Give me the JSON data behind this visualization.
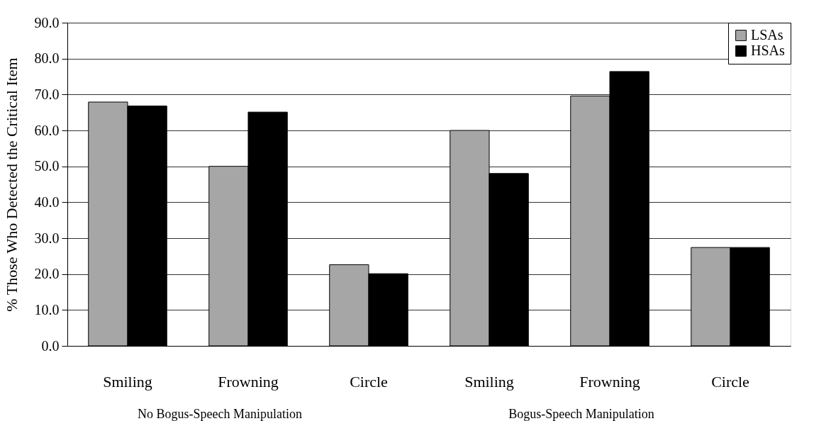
{
  "chart_data": {
    "type": "bar",
    "ylabel": "% Those Who Detected the Critical Item",
    "categories": [
      "Smiling",
      "Frowning",
      "Circle",
      "Smiling",
      "Frowning",
      "Circle"
    ],
    "series": [
      {
        "name": "LSAs",
        "color": "#a6a6a6",
        "values": [
          67.9,
          50.0,
          22.6,
          60.0,
          69.6,
          27.4
        ]
      },
      {
        "name": "HSAs",
        "color": "#000000",
        "values": [
          66.8,
          65.1,
          20.1,
          48.0,
          76.4,
          27.4
        ]
      }
    ],
    "annotations": [
      "No Bogus-Speech Manipulation",
      "Bogus-Speech Manipulation"
    ],
    "ylim": [
      0,
      90
    ],
    "yticks": [
      {
        "value": 0,
        "label": "0.0"
      },
      {
        "value": 10,
        "label": "10.0"
      },
      {
        "value": 20,
        "label": "20.0"
      },
      {
        "value": 30,
        "label": "30.0"
      },
      {
        "value": 40,
        "label": "40.0"
      },
      {
        "value": 50,
        "label": "50.0"
      },
      {
        "value": 60,
        "label": "60.0"
      },
      {
        "value": 70,
        "label": "70.0"
      },
      {
        "value": 80,
        "label": "80.0"
      },
      {
        "value": 90,
        "label": "90.0"
      }
    ],
    "grid": "y",
    "legend": "top right"
  }
}
